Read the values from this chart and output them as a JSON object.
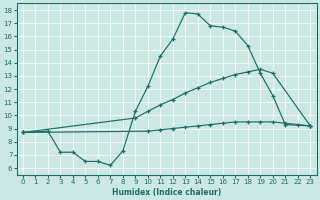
{
  "xlabel": "Humidex (Indice chaleur)",
  "bg_color": "#cce8e4",
  "line_color": "#1a6e64",
  "xlim": [
    -0.5,
    23.5
  ],
  "ylim": [
    5.5,
    18.5
  ],
  "xticks": [
    0,
    1,
    2,
    3,
    4,
    5,
    6,
    7,
    8,
    9,
    10,
    11,
    12,
    13,
    14,
    15,
    16,
    17,
    18,
    19,
    20,
    21,
    22,
    23
  ],
  "yticks": [
    6,
    7,
    8,
    9,
    10,
    11,
    12,
    13,
    14,
    15,
    16,
    17,
    18
  ],
  "s1x": [
    0,
    2,
    3,
    4,
    5,
    6,
    7,
    8,
    9,
    10,
    11,
    12,
    13,
    14,
    15,
    16,
    17,
    18,
    19,
    20,
    21,
    23
  ],
  "s1y": [
    8.7,
    8.8,
    7.2,
    7.2,
    6.5,
    6.5,
    6.2,
    7.3,
    10.3,
    12.2,
    14.5,
    15.8,
    17.8,
    17.7,
    16.8,
    16.7,
    16.4,
    15.3,
    13.2,
    11.5,
    9.3,
    9.2
  ],
  "s2x": [
    0,
    9,
    10,
    11,
    12,
    13,
    14,
    15,
    16,
    17,
    18,
    19,
    20,
    23
  ],
  "s2y": [
    8.7,
    9.8,
    10.3,
    10.8,
    11.2,
    11.7,
    12.1,
    12.5,
    12.8,
    13.1,
    13.3,
    13.5,
    13.2,
    9.2
  ],
  "s3x": [
    0,
    10,
    11,
    12,
    13,
    14,
    15,
    16,
    17,
    18,
    19,
    20,
    21,
    22,
    23
  ],
  "s3y": [
    8.7,
    8.8,
    8.9,
    9.0,
    9.1,
    9.2,
    9.3,
    9.4,
    9.5,
    9.5,
    9.5,
    9.5,
    9.4,
    9.3,
    9.2
  ]
}
